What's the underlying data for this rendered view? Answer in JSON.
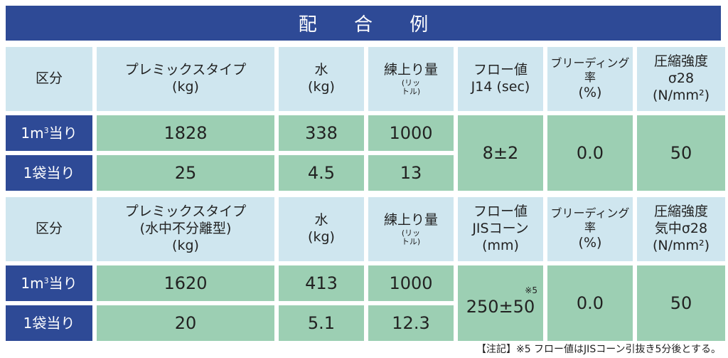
{
  "title": "配 合 例",
  "table1": {
    "headers": {
      "category": "区分",
      "premix": [
        "プレミックスタイプ",
        "(kg)"
      ],
      "water": [
        "水",
        "(kg)"
      ],
      "yield": [
        "練上り量",
        "(リッ",
        "トル)"
      ],
      "flow": [
        "フロー値",
        "J14 (sec)"
      ],
      "bleeding": [
        "ブリーディング率",
        "(%)"
      ],
      "strength": [
        "圧縮強度",
        "σ28",
        "(N/mm²)"
      ]
    },
    "rows": [
      {
        "label": "1m³当り",
        "label_main": "1m",
        "label_sup": "3",
        "label_tail": "当り",
        "premix": "1828",
        "water": "338",
        "yield": "1000"
      },
      {
        "label": "1袋当り",
        "label_main": "1袋当り",
        "premix": "25",
        "water": "4.5",
        "yield": "13"
      }
    ],
    "flow_value": "8±2",
    "bleeding_value": "0.0",
    "strength_value": "50"
  },
  "table2": {
    "headers": {
      "category": "区分",
      "premix": [
        "プレミックスタイプ",
        "(水中不分離型)",
        "(kg)"
      ],
      "water": [
        "水",
        "(kg)"
      ],
      "yield": [
        "練上り量",
        "(リッ",
        "トル)"
      ],
      "flow": [
        "フロー値",
        "JISコーン",
        "(mm)"
      ],
      "bleeding": [
        "ブリーディング率",
        "(%)"
      ],
      "strength": [
        "圧縮強度",
        "気中σ28",
        "(N/mm²)"
      ]
    },
    "rows": [
      {
        "label_main": "1m",
        "label_sup": "3",
        "label_tail": "当り",
        "premix": "1620",
        "water": "413",
        "yield": "1000"
      },
      {
        "label_main": "1袋当り",
        "premix": "20",
        "water": "5.1",
        "yield": "12.3"
      }
    ],
    "flow_note_mark": "※5",
    "flow_value": "250±50",
    "bleeding_value": "0.0",
    "strength_value": "50"
  },
  "footnote": "【注記】※5 フロー値はJISコーン引抜き5分後とする。"
}
